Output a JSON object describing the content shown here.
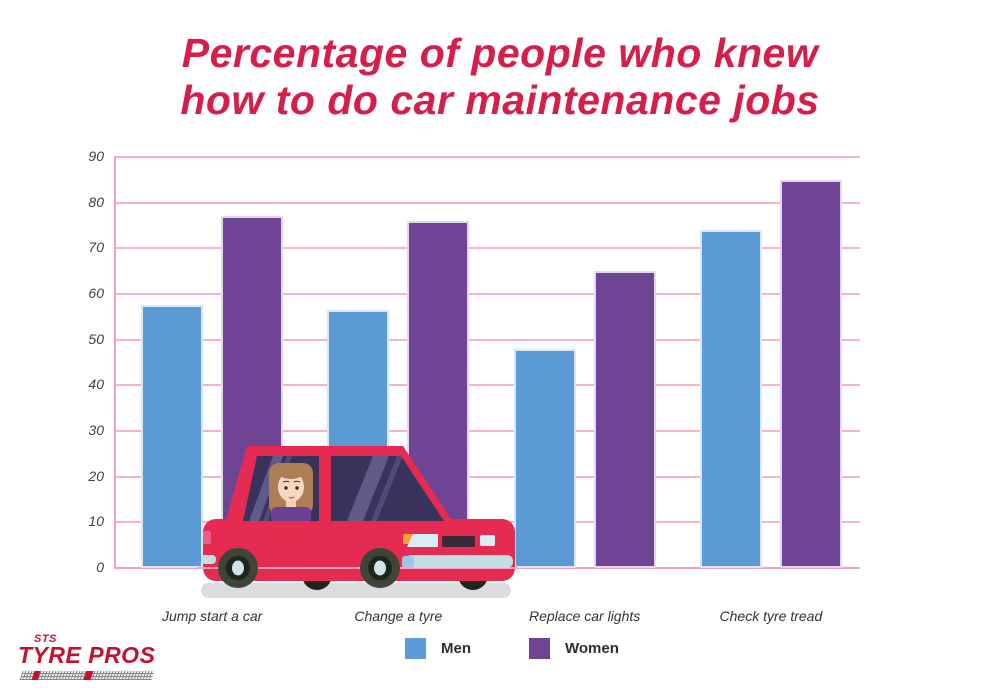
{
  "title": {
    "line1": "Percentage of people who knew",
    "line2": "how to do car maintenance jobs"
  },
  "chart_data": {
    "type": "bar",
    "categories": [
      "Jump start a car",
      "Change a tyre",
      "Replace car lights",
      "Check tyre tread"
    ],
    "series": [
      {
        "name": "Men",
        "color": "#5B9AD5",
        "values": [
          57.5,
          56.5,
          48,
          74
        ]
      },
      {
        "name": "Women",
        "color": "#6F4494",
        "values": [
          77,
          76,
          65,
          85
        ]
      }
    ],
    "title": "Percentage of people who knew how to do car maintenance jobs",
    "xlabel": "",
    "ylabel": "",
    "ylim": [
      0,
      90
    ],
    "yticks": [
      0,
      10,
      20,
      30,
      40,
      50,
      60,
      70,
      80,
      90
    ],
    "grid": true,
    "legend_position": "bottom"
  },
  "legend": {
    "items": [
      {
        "label": "Men",
        "color": "#5B9AD5"
      },
      {
        "label": "Women",
        "color": "#6F4494"
      }
    ]
  },
  "logo": {
    "top": "STS",
    "main": "TYRE PROS"
  },
  "colors": {
    "title": "#D51F4B",
    "grid": "#F8B3CE",
    "axis": "#F5A0C2",
    "tick_text": "#3F3F3F",
    "category_text": "#333333",
    "logo_red": "#C3112E",
    "car_red": "#E62B52",
    "bar_men": "#5B9AD5",
    "bar_women": "#6F4494"
  },
  "illustration": {
    "name": "woman-driving-red-car"
  }
}
